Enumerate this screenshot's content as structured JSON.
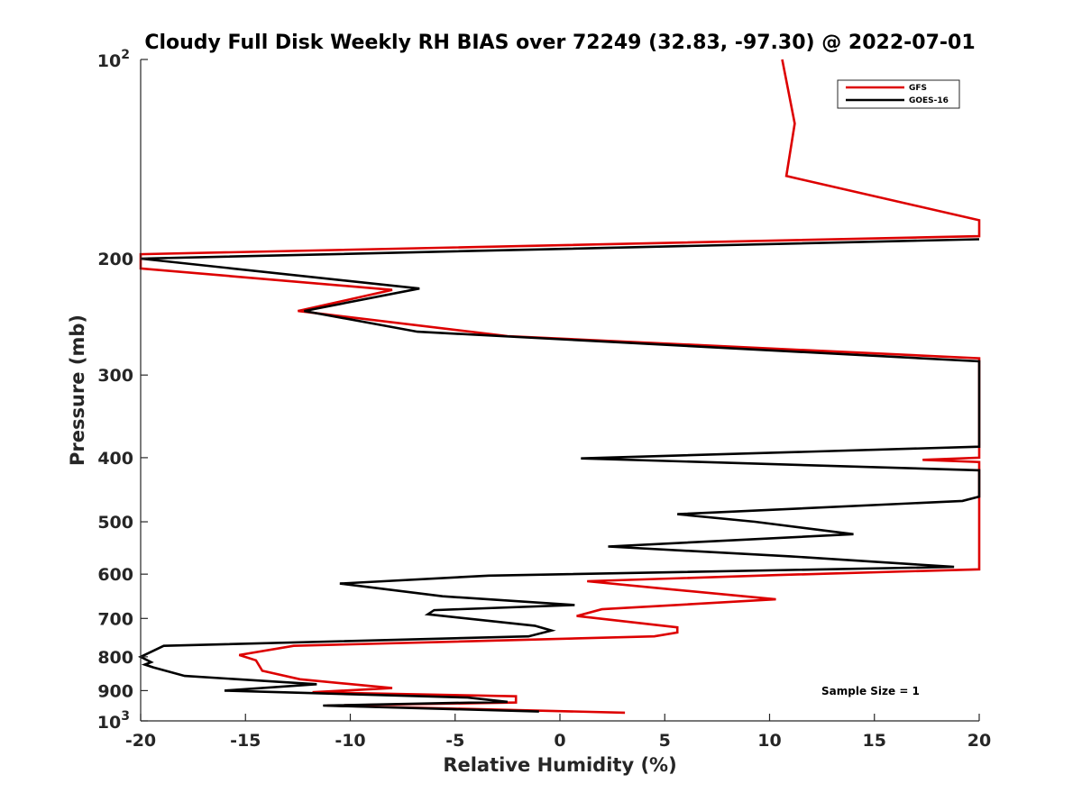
{
  "chart_data": {
    "type": "line",
    "title": "Cloudy Full Disk Weekly RH BIAS over 72249 (32.83, -97.30) @ 2022-07-01",
    "xlabel": "Relative Humidity (%)",
    "ylabel": "Pressure (mb)",
    "xlim": [
      -20,
      20
    ],
    "ylim": [
      100,
      1000
    ],
    "y_scale": "log",
    "y_reversed": true,
    "x_ticks": [
      "-20",
      "-15",
      "-10",
      "-5",
      "0",
      "5",
      "10",
      "15",
      "20"
    ],
    "y_ticks": [
      {
        "value": 100,
        "base": "10",
        "exp": "2"
      },
      {
        "value": 200,
        "label": "200"
      },
      {
        "value": 300,
        "label": "300"
      },
      {
        "value": 400,
        "label": "400"
      },
      {
        "value": 500,
        "label": "500"
      },
      {
        "value": 600,
        "label": "600"
      },
      {
        "value": 700,
        "label": "700"
      },
      {
        "value": 800,
        "label": "800"
      },
      {
        "value": 900,
        "label": "900"
      },
      {
        "value": 1000,
        "base": "10",
        "exp": "3"
      }
    ],
    "grid": false,
    "legend_position": "top-right",
    "annotation": "Sample Size = 1",
    "series": [
      {
        "name": "GFS",
        "color": "#dd0000",
        "points": [
          [
            10.6,
            100
          ],
          [
            11.2,
            125
          ],
          [
            10.8,
            150
          ],
          [
            20,
            175
          ],
          [
            20,
            185
          ],
          [
            -20,
            197
          ],
          [
            -20,
            207
          ],
          [
            -8,
            223
          ],
          [
            -12.5,
            240
          ],
          [
            -2.5,
            262
          ],
          [
            20,
            283
          ],
          [
            20,
            400
          ],
          [
            17.3,
            403
          ],
          [
            20,
            406
          ],
          [
            20,
            590
          ],
          [
            10.3,
            602
          ],
          [
            1.3,
            615
          ],
          [
            4.7,
            630
          ],
          [
            10.3,
            655
          ],
          [
            2,
            678
          ],
          [
            0.8,
            694
          ],
          [
            5.6,
            722
          ],
          [
            5.6,
            735
          ],
          [
            4.5,
            745
          ],
          [
            -12.7,
            770
          ],
          [
            -15.3,
            795
          ],
          [
            -14.5,
            810
          ],
          [
            -14.2,
            840
          ],
          [
            -12.4,
            865
          ],
          [
            -8,
            892
          ],
          [
            -11.8,
            905
          ],
          [
            -2.1,
            918
          ],
          [
            -2.1,
            938
          ],
          [
            -11.1,
            948
          ],
          [
            3.1,
            972
          ]
        ]
      },
      {
        "name": "GOES-16",
        "color": "#000000",
        "points": [
          [
            20,
            187
          ],
          [
            -20,
            200
          ],
          [
            -6.7,
            222
          ],
          [
            -12.2,
            240
          ],
          [
            -6.8,
            258
          ],
          [
            20,
            286
          ],
          [
            20,
            385
          ],
          [
            1,
            401
          ],
          [
            20,
            418
          ],
          [
            20,
            458
          ],
          [
            19.2,
            465
          ],
          [
            5.6,
            487
          ],
          [
            9.3,
            500
          ],
          [
            14,
            522
          ],
          [
            2.3,
            545
          ],
          [
            11,
            564
          ],
          [
            18.8,
            585
          ],
          [
            -3.4,
            603
          ],
          [
            -10.5,
            620
          ],
          [
            -5.6,
            648
          ],
          [
            0.7,
            668
          ],
          [
            -6,
            680
          ],
          [
            -6.3,
            690
          ],
          [
            -1.2,
            718
          ],
          [
            -0.4,
            730
          ],
          [
            -1.5,
            745
          ],
          [
            -18.9,
            770
          ],
          [
            -20,
            800
          ],
          [
            -19.5,
            815
          ],
          [
            -19.8,
            822
          ],
          [
            -19.4,
            830
          ],
          [
            -17.9,
            855
          ],
          [
            -11.6,
            880
          ],
          [
            -16,
            900
          ],
          [
            -4.4,
            922
          ],
          [
            -2.5,
            936
          ],
          [
            -11.3,
            948
          ],
          [
            -1,
            968
          ]
        ]
      }
    ]
  }
}
